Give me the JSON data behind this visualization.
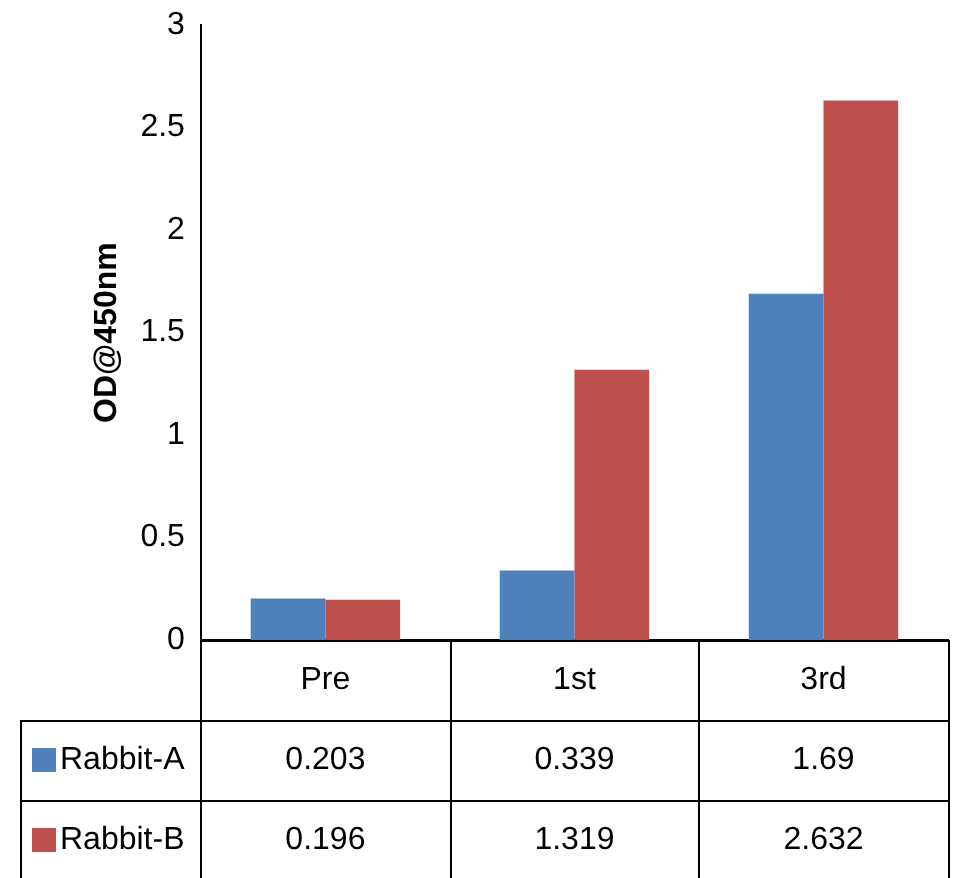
{
  "chart_data": {
    "type": "bar",
    "ylabel": "OD@450nm",
    "categories": [
      "Pre",
      "1st",
      "3rd"
    ],
    "series": [
      {
        "name": "Rabbit-A",
        "color": "#4f81bd",
        "values": [
          0.203,
          0.339,
          1.69
        ]
      },
      {
        "name": "Rabbit-B",
        "color": "#c0504d",
        "values": [
          0.196,
          1.319,
          2.632
        ]
      }
    ],
    "ylim": [
      0,
      3
    ],
    "yticks": [
      0,
      0.5,
      1,
      1.5,
      2,
      2.5,
      3
    ],
    "grid": false,
    "legend": "bottom",
    "data_labels": true
  }
}
